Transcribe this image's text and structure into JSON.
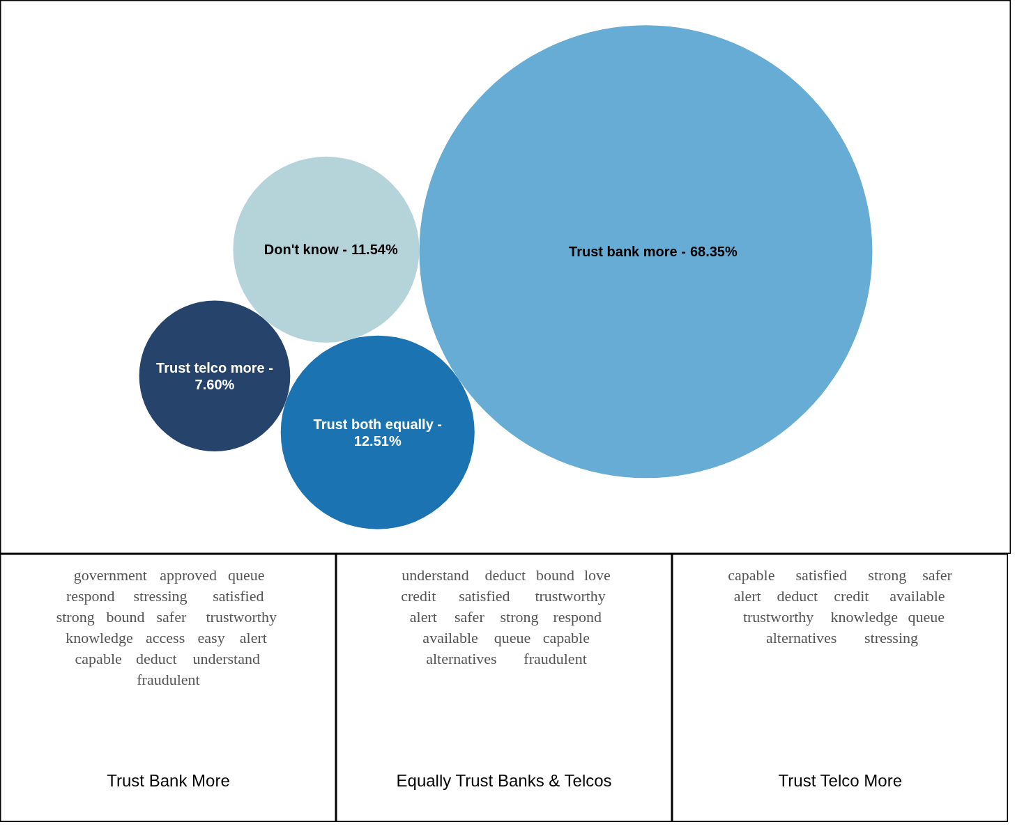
{
  "chart_data": [
    {
      "type": "other",
      "categories": [
        "Trust bank more -",
        "Trust both equally -",
        "Don't know -",
        "Trust telco more -"
      ],
      "values": [
        68.35,
        12.51,
        11.54,
        7.6
      ],
      "value_labels": [
        "68.35%",
        "12.51%",
        "11.54%",
        "7.60%"
      ],
      "colors": [
        "#67acd4",
        "#1c73b1",
        "#b5d4da",
        "#25436b"
      ]
    },
    {
      "type": "other",
      "title": "Trust Bank More",
      "annotations": [
        "government",
        "approved",
        "queue",
        "respond",
        "stressing",
        "satisfied",
        "strong",
        "bound",
        "safer",
        "trustworthy",
        "knowledge",
        "access",
        "easy",
        "alert",
        "capable",
        "deduct",
        "understand",
        "fraudulent"
      ]
    },
    {
      "type": "other",
      "title": "Equally Trust Banks & Telcos",
      "annotations": [
        "understand",
        "deduct",
        "bound",
        "love",
        "credit",
        "satisfied",
        "trustworthy",
        "alert",
        "safer",
        "strong",
        "respond",
        "available",
        "queue",
        "capable",
        "alternatives",
        "fraudulent"
      ]
    },
    {
      "type": "other",
      "title": "Trust Telco More",
      "annotations": [
        "capable",
        "satisfied",
        "strong",
        "safer",
        "alert",
        "deduct",
        "credit",
        "available",
        "trustworthy",
        "knowledge",
        "queue",
        "alternatives",
        "stressing"
      ]
    }
  ]
}
